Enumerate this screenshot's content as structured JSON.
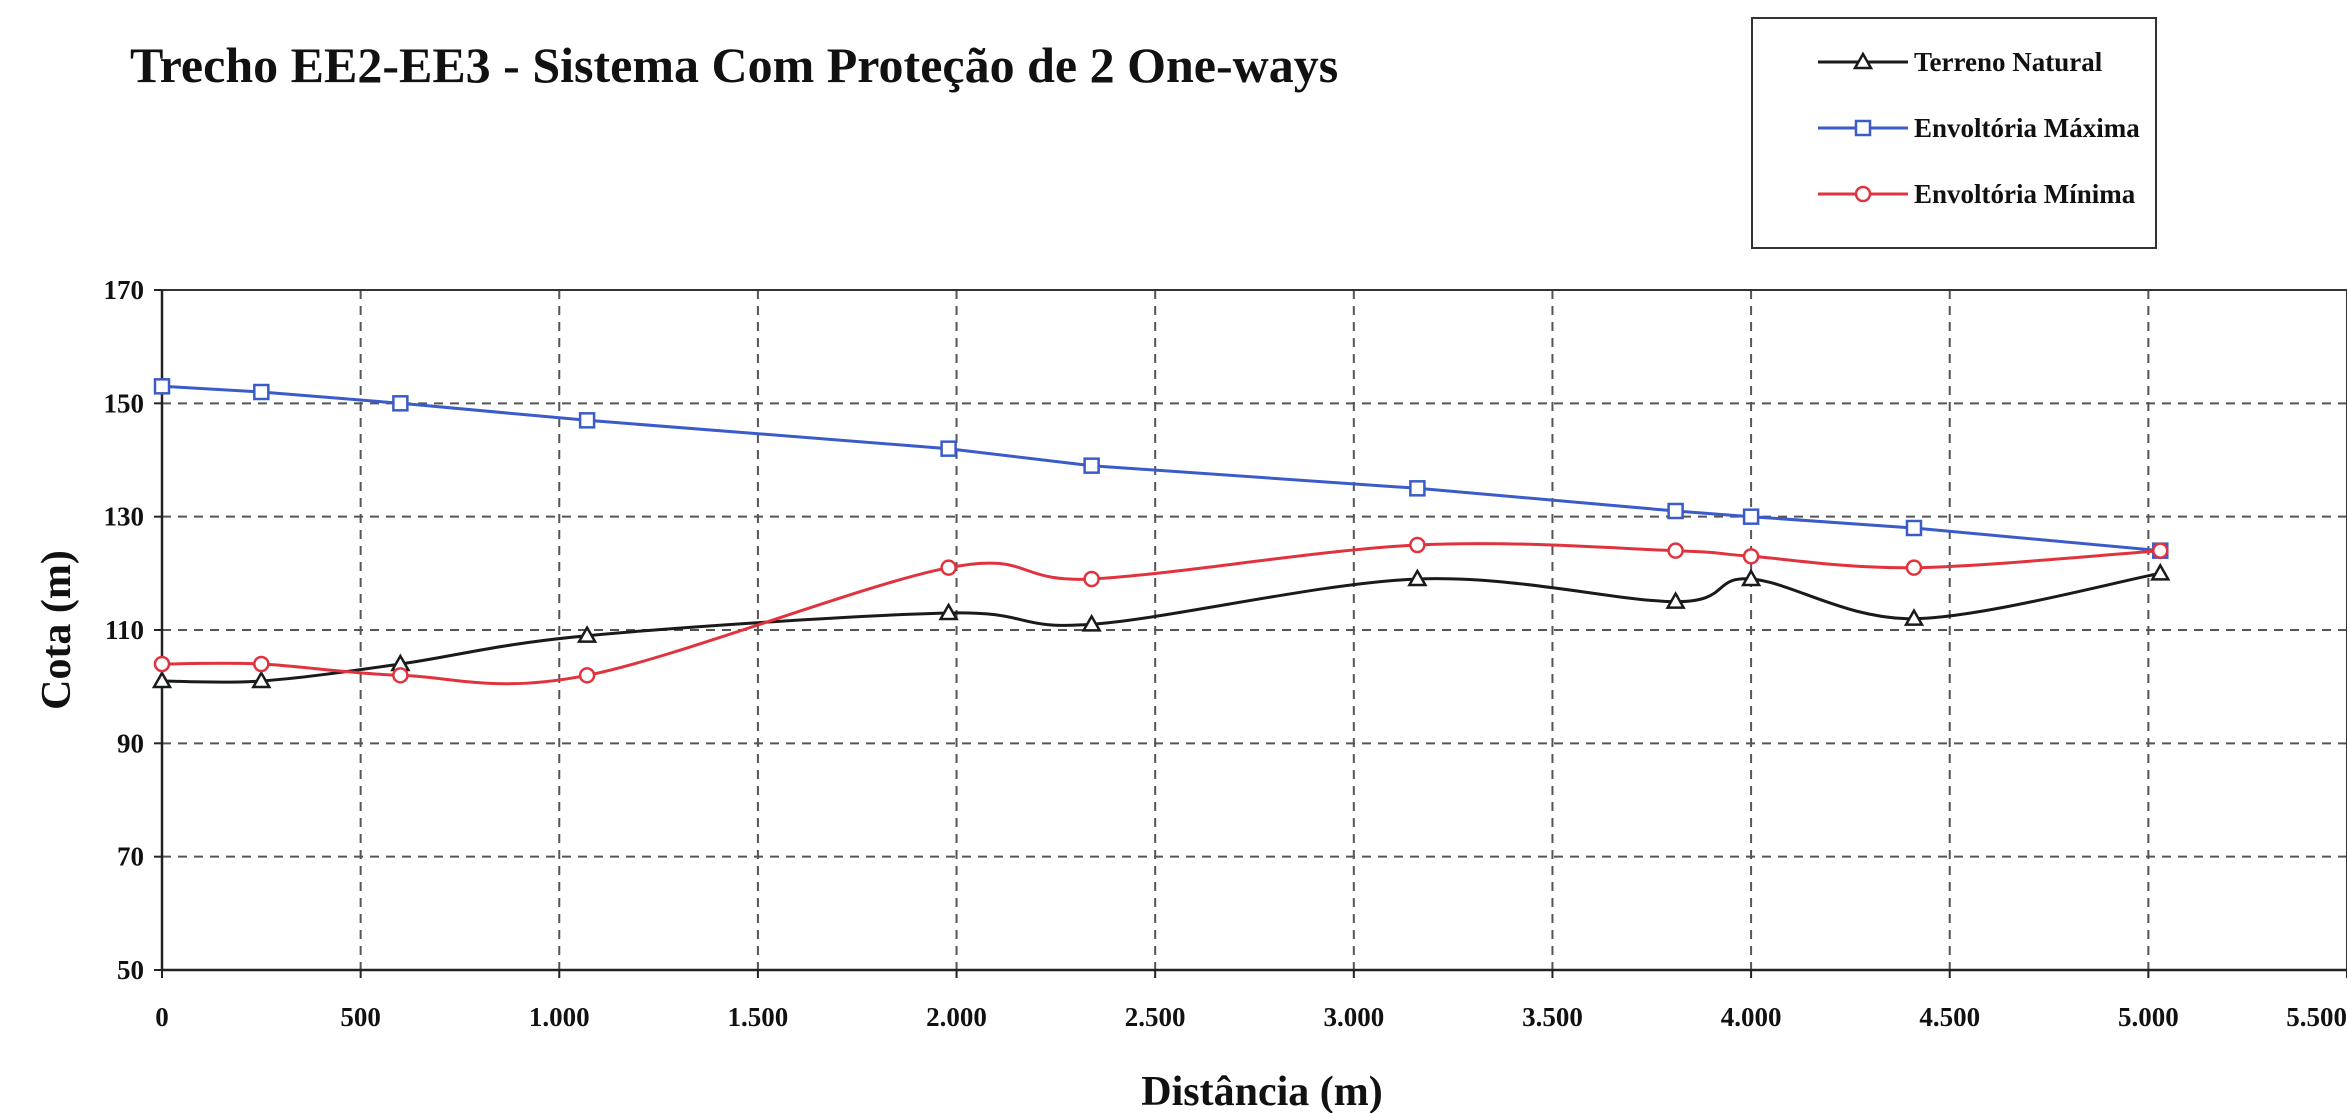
{
  "chart_data": {
    "type": "line",
    "title": "Trecho EE2-EE3 - Sistema Com Proteção de 2 One-ways",
    "xlabel": "Distância (m)",
    "ylabel": "Cota (m)",
    "xlim": [
      0,
      5500
    ],
    "ylim": [
      50,
      170
    ],
    "x_ticks": [
      {
        "value": 0,
        "label": "0"
      },
      {
        "value": 500,
        "label": "500"
      },
      {
        "value": 1000,
        "label": "1.000"
      },
      {
        "value": 1500,
        "label": "1.500"
      },
      {
        "value": 2000,
        "label": "2.000"
      },
      {
        "value": 2500,
        "label": "2.500"
      },
      {
        "value": 3000,
        "label": "3.000"
      },
      {
        "value": 3500,
        "label": "3.500"
      },
      {
        "value": 4000,
        "label": "4.000"
      },
      {
        "value": 4500,
        "label": "4.500"
      },
      {
        "value": 5000,
        "label": "5.000"
      },
      {
        "value": 5500,
        "label": "5.500"
      }
    ],
    "y_ticks": [
      {
        "value": 50,
        "label": "50"
      },
      {
        "value": 70,
        "label": "70"
      },
      {
        "value": 90,
        "label": "90"
      },
      {
        "value": 110,
        "label": "110"
      },
      {
        "value": 130,
        "label": "130"
      },
      {
        "value": 150,
        "label": "150"
      },
      {
        "value": 170,
        "label": "170"
      }
    ],
    "grid": true,
    "legend_position": "top-right",
    "series": [
      {
        "name": "Terreno Natural",
        "color": "#1a1a1a",
        "marker": "triangle",
        "smooth": true,
        "x": [
          0,
          250,
          600,
          1070,
          1980,
          2340,
          3160,
          3810,
          4000,
          4410,
          5030
        ],
        "y": [
          101,
          101,
          104,
          109,
          113,
          111,
          119,
          115,
          119,
          112,
          120
        ]
      },
      {
        "name": "Envoltória Máxima",
        "color": "#3b5bc8",
        "marker": "square",
        "smooth": false,
        "x": [
          0,
          250,
          600,
          1070,
          1980,
          2340,
          3160,
          3810,
          4000,
          4410,
          5030
        ],
        "y": [
          153,
          152,
          150,
          147,
          142,
          139,
          135,
          131,
          130,
          128,
          124
        ]
      },
      {
        "name": "Envoltória Mínima",
        "color": "#e0333e",
        "marker": "circle",
        "smooth": true,
        "x": [
          0,
          250,
          600,
          1070,
          1980,
          2340,
          3160,
          3810,
          4000,
          4410,
          5030
        ],
        "y": [
          104,
          104,
          102,
          102,
          121,
          119,
          125,
          124,
          123,
          121,
          124
        ]
      }
    ]
  }
}
